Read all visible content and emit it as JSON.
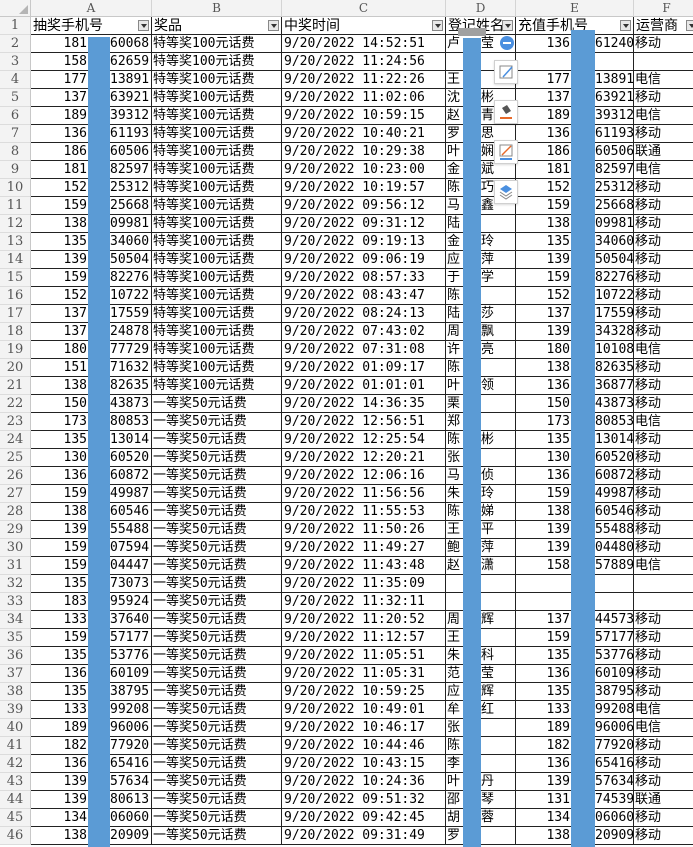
{
  "columns": [
    "A",
    "B",
    "C",
    "D",
    "E",
    "F"
  ],
  "headers": [
    "抽奖手机号",
    "奖品",
    "中奖时间",
    "登记姓名",
    "充值手机号",
    "运营商"
  ],
  "accent_redaction": "#5b9bd5",
  "toolbar_icons": [
    "remove-circle-icon",
    "edit-icon",
    "fill-color-icon",
    "line-color-icon",
    "layers-icon"
  ],
  "rows": [
    [
      2,
      "181",
      "60068",
      "特等奖100元话费",
      "9/20/2022 14:52:51",
      "卢",
      "莹",
      "136",
      "61240",
      "移动"
    ],
    [
      3,
      "158",
      "62659",
      "特等奖100元话费",
      "9/20/2022 11:24:56",
      "",
      "",
      "",
      "",
      ""
    ],
    [
      4,
      "177",
      "13891",
      "特等奖100元话费",
      "9/20/2022 11:22:26",
      "王",
      "",
      "177",
      "13891",
      "电信"
    ],
    [
      5,
      "137",
      "63921",
      "特等奖100元话费",
      "9/20/2022 11:02:06",
      "沈",
      "彬",
      "137",
      "63921",
      "移动"
    ],
    [
      6,
      "189",
      "39312",
      "特等奖100元话费",
      "9/20/2022 10:59:15",
      "赵",
      "青",
      "189",
      "39312",
      "电信"
    ],
    [
      7,
      "136",
      "61193",
      "特等奖100元话费",
      "9/20/2022 10:40:21",
      "罗",
      "思",
      "136",
      "61193",
      "移动"
    ],
    [
      8,
      "186",
      "60506",
      "特等奖100元话费",
      "9/20/2022 10:29:38",
      "叶",
      "娴",
      "186",
      "60506",
      "联通"
    ],
    [
      9,
      "181",
      "82597",
      "特等奖100元话费",
      "9/20/2022 10:23:00",
      "金",
      "斌",
      "181",
      "82597",
      "电信"
    ],
    [
      10,
      "152",
      "25312",
      "特等奖100元话费",
      "9/20/2022 10:19:57",
      "陈",
      "巧",
      "152",
      "25312",
      "移动"
    ],
    [
      11,
      "159",
      "25668",
      "特等奖100元话费",
      "9/20/2022 09:56:12",
      "马",
      "鑫",
      "159",
      "25668",
      "移动"
    ],
    [
      12,
      "138",
      "09981",
      "特等奖100元话费",
      "9/20/2022 09:31:12",
      "陆",
      "",
      "138",
      "09981",
      "移动"
    ],
    [
      13,
      "135",
      "34060",
      "特等奖100元话费",
      "9/20/2022 09:19:13",
      "金",
      "玲",
      "135",
      "34060",
      "移动"
    ],
    [
      14,
      "139",
      "50504",
      "特等奖100元话费",
      "9/20/2022 09:06:19",
      "应",
      "萍",
      "139",
      "50504",
      "移动"
    ],
    [
      15,
      "159",
      "82276",
      "特等奖100元话费",
      "9/20/2022 08:57:33",
      "于",
      "学",
      "159",
      "82276",
      "移动"
    ],
    [
      16,
      "152",
      "10722",
      "特等奖100元话费",
      "9/20/2022 08:43:47",
      "陈",
      "",
      "152",
      "10722",
      "移动"
    ],
    [
      17,
      "137",
      "17559",
      "特等奖100元话费",
      "9/20/2022 08:24:13",
      "陆",
      "莎",
      "137",
      "17559",
      "移动"
    ],
    [
      18,
      "137",
      "24878",
      "特等奖100元话费",
      "9/20/2022 07:43:02",
      "周",
      "飘",
      "139",
      "34328",
      "移动"
    ],
    [
      19,
      "180",
      "77729",
      "特等奖100元话费",
      "9/20/2022 07:31:08",
      "许",
      "亮",
      "180",
      "10108",
      "电信"
    ],
    [
      20,
      "151",
      "71632",
      "特等奖100元话费",
      "9/20/2022 01:09:17",
      "陈",
      "",
      "138",
      "82635",
      "移动"
    ],
    [
      21,
      "138",
      "82635",
      "特等奖100元话费",
      "9/20/2022 01:01:01",
      "叶",
      "领",
      "136",
      "36877",
      "移动"
    ],
    [
      22,
      "150",
      "43873",
      "一等奖50元话费",
      "9/20/2022 14:36:35",
      "栗",
      "",
      "150",
      "43873",
      "移动"
    ],
    [
      23,
      "173",
      "80853",
      "一等奖50元话费",
      "9/20/2022 12:56:51",
      "郑",
      "",
      "173",
      "80853",
      "电信"
    ],
    [
      24,
      "135",
      "13014",
      "一等奖50元话费",
      "9/20/2022 12:25:54",
      "陈",
      "彬",
      "135",
      "13014",
      "移动"
    ],
    [
      25,
      "130",
      "60520",
      "一等奖50元话费",
      "9/20/2022 12:20:21",
      "张",
      "",
      "130",
      "60520",
      "移动"
    ],
    [
      26,
      "136",
      "60872",
      "一等奖50元话费",
      "9/20/2022 12:06:16",
      "马",
      "侦",
      "136",
      "60872",
      "移动"
    ],
    [
      27,
      "159",
      "49987",
      "一等奖50元话费",
      "9/20/2022 11:56:56",
      "朱",
      "玲",
      "159",
      "49987",
      "移动"
    ],
    [
      28,
      "138",
      "60546",
      "一等奖50元话费",
      "9/20/2022 11:55:53",
      "陈",
      "娣",
      "138",
      "60546",
      "移动"
    ],
    [
      29,
      "139",
      "55488",
      "一等奖50元话费",
      "9/20/2022 11:50:26",
      "王",
      "平",
      "139",
      "55488",
      "移动"
    ],
    [
      30,
      "159",
      "07594",
      "一等奖50元话费",
      "9/20/2022 11:49:27",
      "鲍",
      "萍",
      "139",
      "04480",
      "移动"
    ],
    [
      31,
      "159",
      "04447",
      "一等奖50元话费",
      "9/20/2022 11:43:48",
      "赵",
      "潇",
      "158",
      "57889",
      "电信"
    ],
    [
      32,
      "135",
      "73073",
      "一等奖50元话费",
      "9/20/2022 11:35:09",
      "",
      "",
      "",
      "",
      ""
    ],
    [
      33,
      "183",
      "95924",
      "一等奖50元话费",
      "9/20/2022 11:32:11",
      "",
      "",
      "",
      "",
      ""
    ],
    [
      34,
      "133",
      "37640",
      "一等奖50元话费",
      "9/20/2022 11:20:52",
      "周",
      "辉",
      "137",
      "44573",
      "移动"
    ],
    [
      35,
      "159",
      "57177",
      "一等奖50元话费",
      "9/20/2022 11:12:57",
      "王",
      "",
      "159",
      "57177",
      "移动"
    ],
    [
      36,
      "135",
      "53776",
      "一等奖50元话费",
      "9/20/2022 11:05:51",
      "朱",
      "科",
      "135",
      "53776",
      "移动"
    ],
    [
      37,
      "136",
      "60109",
      "一等奖50元话费",
      "9/20/2022 11:05:31",
      "范",
      "莹",
      "136",
      "60109",
      "移动"
    ],
    [
      38,
      "135",
      "38795",
      "一等奖50元话费",
      "9/20/2022 10:59:25",
      "应",
      "辉",
      "135",
      "38795",
      "移动"
    ],
    [
      39,
      "133",
      "99208",
      "一等奖50元话费",
      "9/20/2022 10:49:01",
      "牟",
      "红",
      "133",
      "99208",
      "电信"
    ],
    [
      40,
      "189",
      "96006",
      "一等奖50元话费",
      "9/20/2022 10:46:17",
      "张",
      "",
      "189",
      "96006",
      "电信"
    ],
    [
      41,
      "182",
      "77920",
      "一等奖50元话费",
      "9/20/2022 10:44:46",
      "陈",
      "",
      "182",
      "77920",
      "移动"
    ],
    [
      42,
      "136",
      "65416",
      "一等奖50元话费",
      "9/20/2022 10:43:15",
      "李",
      "",
      "136",
      "65416",
      "移动"
    ],
    [
      43,
      "139",
      "57634",
      "一等奖50元话费",
      "9/20/2022 10:24:36",
      "叶",
      "丹",
      "139",
      "57634",
      "移动"
    ],
    [
      44,
      "139",
      "80613",
      "一等奖50元话费",
      "9/20/2022 09:51:32",
      "邵",
      "琴",
      "131",
      "74539",
      "联通"
    ],
    [
      45,
      "134",
      "06060",
      "一等奖50元话费",
      "9/20/2022 09:42:45",
      "胡",
      "蓉",
      "134",
      "06060",
      "移动"
    ],
    [
      46,
      "138",
      "20909",
      "一等奖50元话费",
      "9/20/2022 09:31:49",
      "罗",
      "",
      "138",
      "20909",
      "移动"
    ]
  ]
}
